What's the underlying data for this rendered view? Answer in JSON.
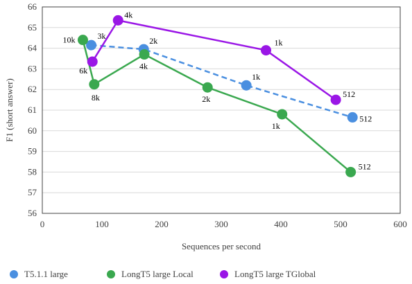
{
  "chart_data": {
    "type": "line",
    "xlabel": "Sequences per second",
    "ylabel": "F1 (short answer)",
    "xlim": [
      0,
      600
    ],
    "ylim": [
      56,
      66
    ],
    "x_ticks": [
      0,
      100,
      200,
      300,
      400,
      500,
      600
    ],
    "y_ticks": [
      56,
      57,
      58,
      59,
      60,
      61,
      62,
      63,
      64,
      65,
      66
    ],
    "grid": "horizontal",
    "legend_position": "bottom",
    "series": [
      {
        "name": "T5.1.1 large",
        "color": "#4a8fe0",
        "line_style": "dashed",
        "points": [
          {
            "x": 82,
            "y": 64.15,
            "label": "3k"
          },
          {
            "x": 170,
            "y": 63.95,
            "label": "2k"
          },
          {
            "x": 342,
            "y": 62.2,
            "label": "1k"
          },
          {
            "x": 520,
            "y": 60.65,
            "label": "512"
          }
        ]
      },
      {
        "name": "LongT5 large Local",
        "color": "#3aa84f",
        "line_style": "solid",
        "points": [
          {
            "x": 68,
            "y": 64.4,
            "label": "10k"
          },
          {
            "x": 87,
            "y": 62.25,
            "label": "8k"
          },
          {
            "x": 171,
            "y": 63.7,
            "label": "4k"
          },
          {
            "x": 277,
            "y": 62.1,
            "label": "2k"
          },
          {
            "x": 402,
            "y": 60.8,
            "label": "1k"
          },
          {
            "x": 517,
            "y": 58.0,
            "label": "512"
          }
        ]
      },
      {
        "name": "LongT5 large TGlobal",
        "color": "#9a16e6",
        "line_style": "solid",
        "points": [
          {
            "x": 84,
            "y": 63.35,
            "label": "6k"
          },
          {
            "x": 127,
            "y": 65.35,
            "label": "4k"
          },
          {
            "x": 375,
            "y": 63.9,
            "label": "1k"
          },
          {
            "x": 492,
            "y": 61.5,
            "label": "512"
          }
        ]
      }
    ]
  }
}
